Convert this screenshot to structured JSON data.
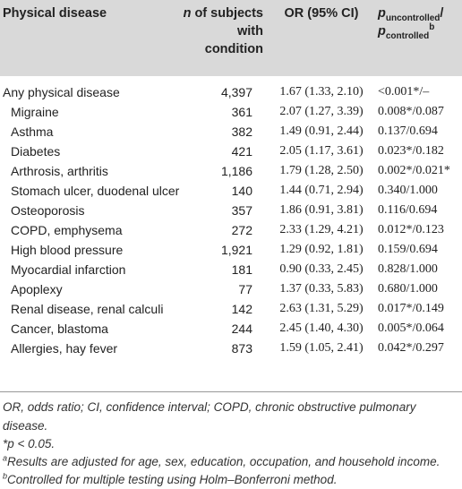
{
  "table": {
    "headers": {
      "disease": "Physical disease",
      "n_prefix": "n",
      "n_rest": " of subjects with condition",
      "or": "OR (95% CI)",
      "p_main1": "p",
      "p_sub1": "uncontrolled",
      "p_slash": "/",
      "p_main2": "p",
      "p_sub2": "controlled",
      "p_sup": "b"
    },
    "rows": [
      {
        "disease": "Any physical disease",
        "n": "4,397",
        "or": "1.67 (1.33, 2.10)",
        "p": "<0.001*/–"
      },
      {
        "disease": "Migraine",
        "n": "361",
        "or": "2.07 (1.27, 3.39)",
        "p": "0.008*/0.087"
      },
      {
        "disease": "Asthma",
        "n": "382",
        "or": "1.49 (0.91, 2.44)",
        "p": "0.137/0.694"
      },
      {
        "disease": "Diabetes",
        "n": "421",
        "or": "2.05 (1.17, 3.61)",
        "p": "0.023*/0.182"
      },
      {
        "disease": "Arthrosis, arthritis",
        "n": "1,186",
        "or": "1.79 (1.28, 2.50)",
        "p": "0.002*/0.021*"
      },
      {
        "disease": "Stomach ulcer, duodenal ulcer",
        "n": "140",
        "or": "1.44 (0.71, 2.94)",
        "p": "0.340/1.000"
      },
      {
        "disease": "Osteoporosis",
        "n": "357",
        "or": "1.86 (0.91, 3.81)",
        "p": "0.116/0.694"
      },
      {
        "disease": "COPD, emphysema",
        "n": "272",
        "or": "2.33 (1.29, 4.21)",
        "p": "0.012*/0.123"
      },
      {
        "disease": "High blood pressure",
        "n": "1,921",
        "or": "1.29 (0.92, 1.81)",
        "p": "0.159/0.694"
      },
      {
        "disease": "Myocardial infarction",
        "n": "181",
        "or": "0.90 (0.33, 2.45)",
        "p": "0.828/1.000"
      },
      {
        "disease": "Apoplexy",
        "n": "77",
        "or": "1.37 (0.33, 5.83)",
        "p": "0.680/1.000"
      },
      {
        "disease": "Renal disease, renal calculi",
        "n": "142",
        "or": "2.63 (1.31, 5.29)",
        "p": "0.017*/0.149"
      },
      {
        "disease": "Cancer, blastoma",
        "n": "244",
        "or": "2.45 (1.40, 4.30)",
        "p": "0.005*/0.064"
      },
      {
        "disease": "Allergies, hay fever",
        "n": "873",
        "or": "1.59 (1.05, 2.41)",
        "p": "0.042*/0.297"
      }
    ]
  },
  "footnotes": {
    "abbreviations": "OR, odds ratio; CI, confidence interval; COPD, chronic obstructive pulmonary disease.",
    "significance": "*p < 0.05.",
    "a_mark": "a",
    "a_text": "Results are adjusted for age, sex, education, occupation, and household income.",
    "b_mark": "b",
    "b_text": "Controlled for multiple testing using Holm–Bonferroni method."
  },
  "colors": {
    "header_bg": "#d9d9d9",
    "text": "#222222"
  }
}
